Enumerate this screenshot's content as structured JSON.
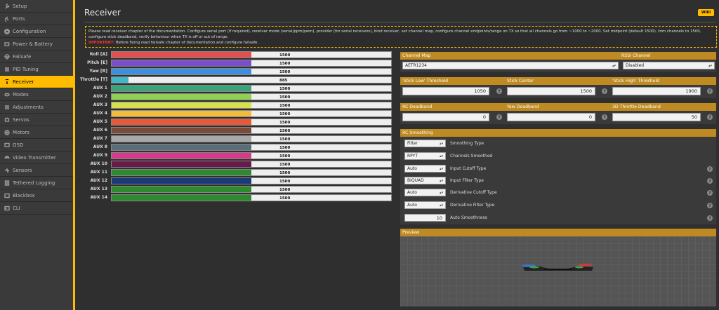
{
  "sidebar": {
    "items": [
      {
        "label": "Setup",
        "icon": "wrench-icon"
      },
      {
        "label": "Ports",
        "icon": "plug-icon"
      },
      {
        "label": "Configuration",
        "icon": "gear-icon"
      },
      {
        "label": "Power & Battery",
        "icon": "battery-icon"
      },
      {
        "label": "Failsafe",
        "icon": "parachute-icon"
      },
      {
        "label": "PID Tuning",
        "icon": "sliders-icon"
      },
      {
        "label": "Receiver",
        "icon": "antenna-icon",
        "active": true
      },
      {
        "label": "Modes",
        "icon": "toggle-icon"
      },
      {
        "label": "Adjustments",
        "icon": "adjust-icon"
      },
      {
        "label": "Servos",
        "icon": "servo-icon"
      },
      {
        "label": "Motors",
        "icon": "motor-icon"
      },
      {
        "label": "OSD",
        "icon": "screen-icon"
      },
      {
        "label": "Video Transmitter",
        "icon": "broadcast-icon"
      },
      {
        "label": "Sensors",
        "icon": "sensor-icon"
      },
      {
        "label": "Tethered Logging",
        "icon": "log-icon"
      },
      {
        "label": "Blackbox",
        "icon": "blackbox-icon"
      },
      {
        "label": "CLI",
        "icon": "terminal-icon"
      }
    ]
  },
  "header": {
    "title": "Receiver",
    "wiki": "WIKI"
  },
  "notice": {
    "text": "Please read receiver chapter of the documentation. Configure serial port (if required), receiver mode (serial/ppm/pwm), provider (for serial receivers), bind receiver, set channel map, configure channel endpoints/range on TX so that all channels go from ~1000 to ~2000. Set midpoint (default 1500), trim channels to 1500, configure stick deadband, verify behaviour when TX is off or out of range.",
    "important_label": "IMPORTANT:",
    "important_text": "Before flying read failsafe chapter of documentation and configure failsafe."
  },
  "channels": [
    {
      "label": "Roll [A]",
      "value": "1500",
      "fraction": 0.5,
      "color": "#e05050"
    },
    {
      "label": "Pitch [E]",
      "value": "1500",
      "fraction": 0.5,
      "color": "#7b4fc9"
    },
    {
      "label": "Yaw [R]",
      "value": "1500",
      "fraction": 0.5,
      "color": "#3e8ee0"
    },
    {
      "label": "Throttle [T]",
      "value": "885",
      "fraction": 0.06,
      "color": "#40b7c9"
    },
    {
      "label": "AUX 1",
      "value": "1500",
      "fraction": 0.5,
      "color": "#3aa37a"
    },
    {
      "label": "AUX 2",
      "value": "1500",
      "fraction": 0.5,
      "color": "#8fcf52"
    },
    {
      "label": "AUX 3",
      "value": "1500",
      "fraction": 0.5,
      "color": "#d8e050"
    },
    {
      "label": "AUX 4",
      "value": "1500",
      "fraction": 0.5,
      "color": "#f2bb3a"
    },
    {
      "label": "AUX 5",
      "value": "1500",
      "fraction": 0.5,
      "color": "#e8583a"
    },
    {
      "label": "AUX 6",
      "value": "1500",
      "fraction": 0.5,
      "color": "#7a4a3a"
    },
    {
      "label": "AUX 7",
      "value": "1500",
      "fraction": 0.5,
      "color": "#a8a8a8"
    },
    {
      "label": "AUX 8",
      "value": "1500",
      "fraction": 0.5,
      "color": "#5a6e7a"
    },
    {
      "label": "AUX 9",
      "value": "1500",
      "fraction": 0.5,
      "color": "#d83a8a"
    },
    {
      "label": "AUX 10",
      "value": "1500",
      "fraction": 0.5,
      "color": "#6a1a4a"
    },
    {
      "label": "AUX 11",
      "value": "1500",
      "fraction": 0.5,
      "color": "#2e8a2e"
    },
    {
      "label": "AUX 12",
      "value": "1500",
      "fraction": 0.5,
      "color": "#1a3a7a"
    },
    {
      "label": "AUX 13",
      "value": "1500",
      "fraction": 0.5,
      "color": "#2e8a2e"
    },
    {
      "label": "AUX 14",
      "value": "1500",
      "fraction": 0.5,
      "color": "#2e8a2e"
    }
  ],
  "channel_map": {
    "label": "Channel Map",
    "value": "AETR1234"
  },
  "rssi": {
    "label": "RSSI Channel",
    "value": "Disabled"
  },
  "thresholds": {
    "low_label": "'Stick Low' Threshold",
    "low_value": "1050",
    "center_label": "Stick Center",
    "center_value": "1500",
    "high_label": "'Stick High' Threshold",
    "high_value": "1900"
  },
  "deadbands": {
    "rc_label": "RC Deadband",
    "rc_value": "0",
    "yaw_label": "Yaw Deadband",
    "yaw_value": "0",
    "throttle3d_label": "3D Throttle Deadband",
    "throttle3d_value": "50"
  },
  "smoothing": {
    "title": "RC Smoothing",
    "rows": [
      {
        "value": "Filter",
        "label": "Smoothing Type",
        "help": false
      },
      {
        "value": "RPYT",
        "label": "Channels Smoothed",
        "help": false
      },
      {
        "value": "Auto",
        "label": "Input Cutoff Type",
        "help": true
      },
      {
        "value": "BIQUAD",
        "label": "Input Filter Type",
        "help": true
      },
      {
        "value": "Auto",
        "label": "Derivative Cutoff Type",
        "help": true
      },
      {
        "value": "Auto",
        "label": "Derivative Filter Type",
        "help": true
      }
    ],
    "auto_smoothness_value": "10",
    "auto_smoothness_label": "Auto Smoothness"
  },
  "preview": {
    "title": "Preview"
  },
  "help_glyph": "?"
}
